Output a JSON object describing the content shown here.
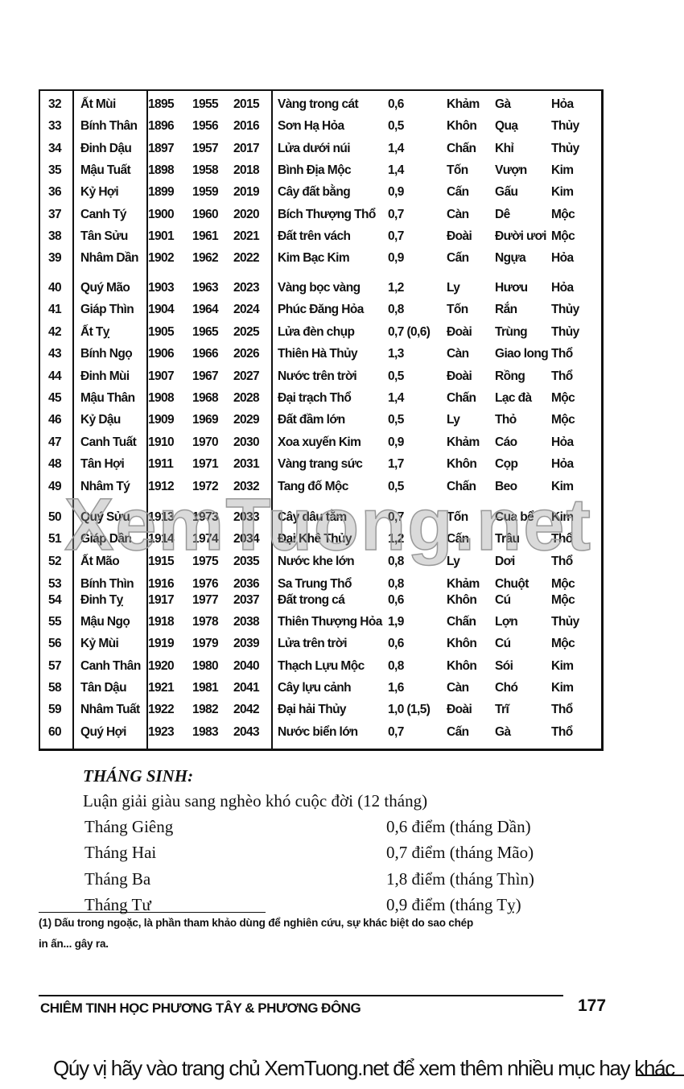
{
  "table": {
    "rows": [
      [
        "32",
        "Ất Mùi",
        "1895",
        "1955",
        "2015",
        "Vàng trong cát",
        "0,6",
        "Khảm",
        "Gà",
        "Hỏa"
      ],
      [
        "33",
        "Bính Thân",
        "1896",
        "1956",
        "2016",
        "Sơn Hạ Hỏa",
        "0,5",
        "Khôn",
        "Quạ",
        "Thủy"
      ],
      [
        "34",
        "Đinh Dậu",
        "1897",
        "1957",
        "2017",
        "Lửa dưới núi",
        "1,4",
        "Chấn",
        "Khỉ",
        "Thủy"
      ],
      [
        "35",
        "Mậu Tuất",
        "1898",
        "1958",
        "2018",
        "Bình Địa Mộc",
        "1,4",
        "Tốn",
        "Vượn",
        "Kim"
      ],
      [
        "36",
        "Kỷ Hợi",
        "1899",
        "1959",
        "2019",
        "Cây đất bằng",
        "0,9",
        "Cấn",
        "Gấu",
        "Kim"
      ],
      [
        "37",
        "Canh Tý",
        "1900",
        "1960",
        "2020",
        "Bích Thượng Thổ",
        "0,7",
        "Càn",
        "Dê",
        "Mộc"
      ],
      [
        "38",
        "Tân Sửu",
        "1901",
        "1961",
        "2021",
        "Đất trên vách",
        "0,7",
        "Đoài",
        "Đười ươi",
        "Mộc"
      ],
      [
        "39",
        "Nhâm Dần",
        "1902",
        "1962",
        "2022",
        "Kim Bạc Kim",
        "0,9",
        "Cấn",
        "Ngựa",
        "Hỏa"
      ],
      [
        "40",
        "Quý Mão",
        "1903",
        "1963",
        "2023",
        "Vàng bọc vàng",
        "1,2",
        "Ly",
        "Hươu",
        "Hỏa"
      ],
      [
        "41",
        "Giáp Thìn",
        "1904",
        "1964",
        "2024",
        "Phúc Đăng Hỏa",
        "0,8",
        "Tốn",
        "Rắn",
        "Thủy"
      ],
      [
        "42",
        "Ất Tỵ",
        "1905",
        "1965",
        "2025",
        "Lửa đèn chụp",
        "0,7 (0,6)",
        "Đoài",
        "Trùng",
        "Thủy"
      ],
      [
        "43",
        "Bính Ngọ",
        "1906",
        "1966",
        "2026",
        "Thiên Hà Thủy",
        "1,3",
        "Càn",
        "Giao long",
        "Thổ"
      ],
      [
        "44",
        "Đinh Mùi",
        "1907",
        "1967",
        "2027",
        "Nước trên trời",
        "0,5",
        "Đoài",
        "Rồng",
        "Thổ"
      ],
      [
        "45",
        "Mậu Thân",
        "1908",
        "1968",
        "2028",
        "Đại trạch Thổ",
        "1,4",
        "Chấn",
        "Lạc đà",
        "Mộc"
      ],
      [
        "46",
        "Kỷ Dậu",
        "1909",
        "1969",
        "2029",
        "Đất đầm lớn",
        "0,5",
        "Ly",
        "Thỏ",
        "Mộc"
      ],
      [
        "47",
        "Canh Tuất",
        "1910",
        "1970",
        "2030",
        "Xoa xuyến Kim",
        "0,9",
        "Khảm",
        "Cáo",
        "Hỏa"
      ],
      [
        "48",
        "Tân Hợi",
        "1911",
        "1971",
        "2031",
        "Vàng trang sức",
        "1,7",
        "Khôn",
        "Cọp",
        "Hỏa"
      ],
      [
        "49",
        "Nhâm Tý",
        "1912",
        "1972",
        "2032",
        "Tang đố Mộc",
        "0,5",
        "Chấn",
        "Beo",
        "Kim"
      ],
      [
        "50",
        "Quý Sửu",
        "1913",
        "1973",
        "2033",
        "Cây dâu tằm",
        "0,7",
        "Tốn",
        "Cua bể",
        "Kim"
      ],
      [
        "51",
        "Giáp Dần",
        "1914",
        "1974",
        "2034",
        "Đại Khê Thủy",
        "1,2",
        "Cấn",
        "Trâu",
        "Thổ"
      ],
      [
        "52",
        "Ất Mão",
        "1915",
        "1975",
        "2035",
        "Nước khe lớn",
        "0,8",
        "Ly",
        "Dơi",
        "Thổ"
      ],
      [
        "53",
        "Bính Thìn",
        "1916",
        "1976",
        "2036",
        "Sa Trung Thổ",
        "0,8",
        "Khảm",
        "Chuột",
        "Mộc"
      ],
      [
        "54",
        "Đinh Tỵ",
        "1917",
        "1977",
        "2037",
        "Đất trong cá",
        "0,6",
        "Khôn",
        "Cú",
        "Mộc"
      ],
      [
        "55",
        "Mậu Ngọ",
        "1918",
        "1978",
        "2038",
        "Thiên Thượng Hỏa",
        "1,9",
        "Chấn",
        "Lợn",
        "Thủy"
      ],
      [
        "56",
        "Kỷ Mùi",
        "1919",
        "1979",
        "2039",
        "Lửa trên trời",
        "0,6",
        "Khôn",
        "Cú",
        "Mộc"
      ],
      [
        "57",
        "Canh Thân",
        "1920",
        "1980",
        "2040",
        "Thạch Lựu Mộc",
        "0,8",
        "Khôn",
        "Sói",
        "Kim"
      ],
      [
        "58",
        "Tân Dậu",
        "1921",
        "1981",
        "2041",
        "Cây lựu cảnh",
        "1,6",
        "Càn",
        "Chó",
        "Kim"
      ],
      [
        "59",
        "Nhâm Tuất",
        "1922",
        "1982",
        "2042",
        "Đại hải Thủy",
        "1,0 (1,5)",
        "Đoài",
        "Trĩ",
        "Thổ"
      ],
      [
        "60",
        "Quý Hợi",
        "1923",
        "1983",
        "2043",
        "Nước biển lớn",
        "0,7",
        "Cấn",
        "Gà",
        "Thổ"
      ]
    ]
  },
  "watermark": "XemTuong.net",
  "month_section": {
    "heading": "THÁNG SINH:",
    "intro": "Luận giải giàu sang nghèo khó cuộc đời (12 tháng)",
    "items": [
      {
        "month": "Tháng Giêng",
        "score": "0,6 điểm (tháng Dần)"
      },
      {
        "month": "Tháng Hai",
        "score": "0,7 điểm (tháng Mão)"
      },
      {
        "month": "Tháng Ba",
        "score": "1,8 điểm (tháng Thìn)"
      },
      {
        "month": "Tháng Tư",
        "score": "0,9 điểm (tháng Tỵ)"
      }
    ]
  },
  "footnote": {
    "line1": "(1) Dấu trong ngoặc, là phần tham khảo dùng để nghiên cứu, sự khác biệt do sao chép",
    "line2": "in ấn... gây ra."
  },
  "footer": {
    "book_title": "CHIÊM TINH HỌC PHƯƠNG TÂY & PHƯƠNG ĐÔNG",
    "page_number": "177"
  },
  "banner": "Qúy vị hãy vào trang chủ XemTuong.net để xem thêm nhiều mục hay khác"
}
